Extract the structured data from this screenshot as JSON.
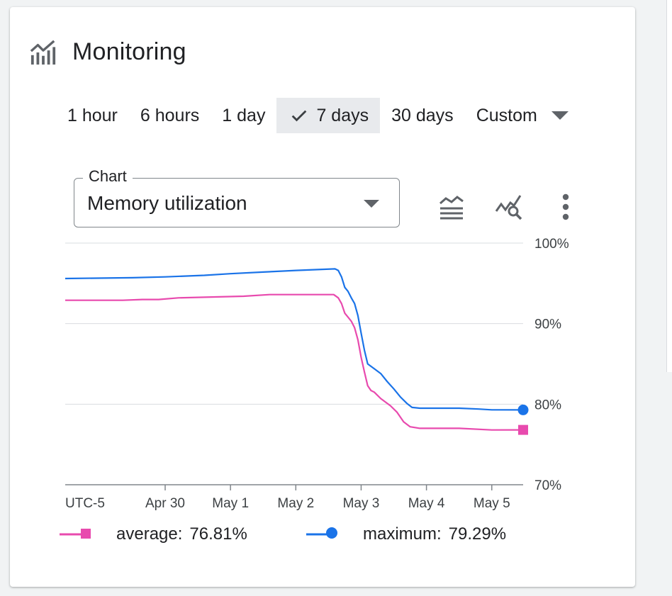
{
  "panel": {
    "title": "Monitoring",
    "icon": "monitoring-chart-icon"
  },
  "time_ranges": [
    {
      "label": "1 hour",
      "selected": false
    },
    {
      "label": "6 hours",
      "selected": false
    },
    {
      "label": "1 day",
      "selected": false
    },
    {
      "label": "7 days",
      "selected": true
    },
    {
      "label": "30 days",
      "selected": false
    }
  ],
  "custom_range": {
    "label": "Custom",
    "icon": "dropdown-caret-icon"
  },
  "chart_select": {
    "label": "Chart",
    "value": "Memory utilization",
    "icon": "dropdown-caret-icon"
  },
  "tools": [
    {
      "name": "stacked-lines-icon"
    },
    {
      "name": "explore-metrics-icon"
    },
    {
      "name": "more-vert-icon"
    }
  ],
  "colors": {
    "average": "#e84aae",
    "maximum": "#1a73e8",
    "grid": "#dadce0",
    "axis": "#80868b"
  },
  "chart_data": {
    "type": "line",
    "ylim": [
      70,
      100
    ],
    "y_ticks": [
      "100%",
      "90%",
      "80%",
      "70%"
    ],
    "x_tick_labels": [
      "UTC-5",
      "Apr 30",
      "May 1",
      "May 2",
      "May 3",
      "May 4",
      "May 5"
    ],
    "x_tick_days": [
      null,
      0,
      1,
      2,
      3,
      4,
      5
    ],
    "x_range_days": [
      -1.53,
      5.48
    ],
    "series": [
      {
        "name": "average",
        "marker": "square",
        "x": [
          -1.53,
          -0.65,
          -0.35,
          -0.1,
          0.2,
          1.2,
          1.6,
          2.58,
          2.65,
          2.7,
          2.75,
          2.8,
          2.85,
          2.9,
          2.95,
          3.0,
          3.05,
          3.1,
          3.15,
          3.2,
          3.3,
          3.45,
          3.55,
          3.65,
          3.75,
          3.9,
          4.5,
          5.0,
          5.48
        ],
        "values": [
          92.9,
          92.9,
          93.0,
          93.0,
          93.2,
          93.4,
          93.6,
          93.6,
          93.2,
          92.5,
          91.3,
          90.8,
          90.3,
          89.5,
          88.0,
          85.8,
          84.0,
          82.3,
          81.7,
          81.5,
          80.7,
          79.8,
          79.0,
          77.8,
          77.2,
          77.0,
          77.0,
          76.8,
          76.81
        ]
      },
      {
        "name": "maximum",
        "marker": "circle",
        "x": [
          -1.53,
          -0.5,
          0.0,
          0.6,
          1.0,
          1.5,
          2.0,
          2.3,
          2.6,
          2.65,
          2.7,
          2.75,
          2.8,
          2.85,
          2.9,
          2.95,
          3.0,
          3.05,
          3.1,
          3.2,
          3.3,
          3.4,
          3.5,
          3.6,
          3.7,
          3.78,
          3.9,
          4.5,
          4.8,
          5.0,
          5.48
        ],
        "values": [
          95.6,
          95.7,
          95.8,
          96.0,
          96.2,
          96.4,
          96.6,
          96.7,
          96.8,
          96.6,
          95.8,
          94.5,
          94.0,
          93.2,
          92.5,
          91.0,
          88.8,
          86.7,
          85.0,
          84.4,
          83.8,
          82.8,
          81.9,
          80.9,
          80.1,
          79.6,
          79.5,
          79.5,
          79.4,
          79.3,
          79.29
        ]
      }
    ],
    "legend": [
      {
        "name": "average",
        "label": "average:",
        "value": "76.81%"
      },
      {
        "name": "maximum",
        "label": "maximum:",
        "value": "79.29%"
      }
    ]
  }
}
